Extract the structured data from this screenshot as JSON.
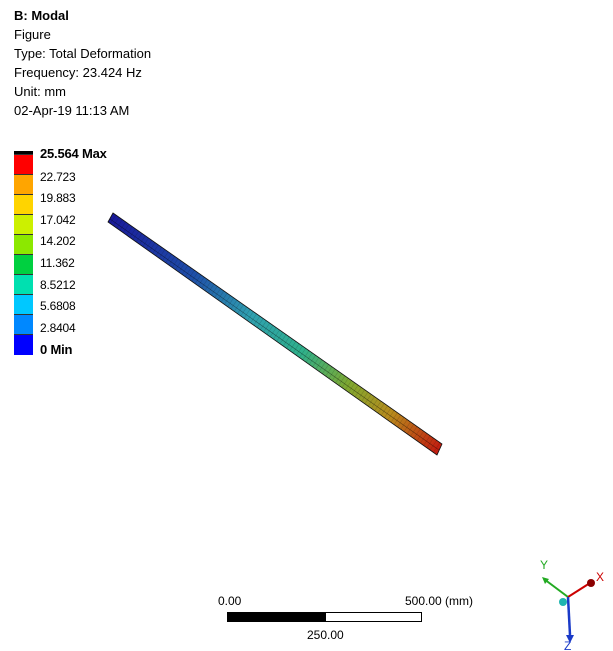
{
  "header": {
    "title": "B: Modal",
    "line1": "Figure",
    "line2": "Type: Total Deformation",
    "line3": "Frequency: 23.424 Hz",
    "line4": "Unit: mm",
    "line5": "02-Apr-19 11:13 AM"
  },
  "legend": {
    "labels": [
      "25.564 Max",
      "22.723",
      "19.883",
      "17.042",
      "14.202",
      "11.362",
      "8.5212",
      "5.6808",
      "2.8404",
      "0 Min"
    ],
    "colors": [
      "#ff0000",
      "#ffa500",
      "#ffd400",
      "#ccf000",
      "#8ce800",
      "#00d040",
      "#00e0b0",
      "#00c8ff",
      "#0088ff",
      "#0000ff"
    ]
  },
  "model": {
    "color_low": "#0000c8",
    "color_mid": "#33ccbb",
    "color_high": "#ff0000"
  },
  "scalebar": {
    "left_label": "0.00",
    "right_label": "500.00 (mm)",
    "mid_label": "250.00"
  },
  "triad": {
    "x_label": "X",
    "y_label": "Y",
    "z_label": "Z"
  }
}
